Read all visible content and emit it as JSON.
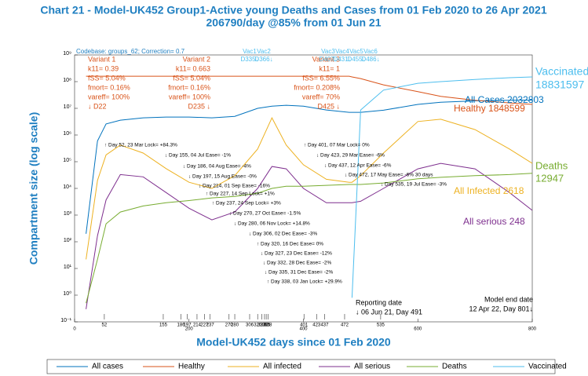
{
  "chart_data": {
    "type": "line",
    "title": "Chart 21 - Model-UK452 Group1-Active young Deaths and Cases from 01 Feb 2020 to 26 Apr 2021",
    "subtitle": "206790/day @85% from 01 Jun 21",
    "x_label": "Model-UK452 days since 01 Feb 2020",
    "y_label": "Compartment size (log scale)",
    "log_y": true,
    "xlim": [
      0,
      800
    ],
    "xticks": [
      0,
      200,
      400,
      600,
      800
    ],
    "ylim": [
      0.1,
      1000000000
    ],
    "yticks": [
      {
        "value": 0.1,
        "label": "10⁻¹"
      },
      {
        "value": 1,
        "label": "10⁰"
      },
      {
        "value": 10,
        "label": "10¹"
      },
      {
        "value": 100,
        "label": "10²"
      },
      {
        "value": 1000,
        "label": "10³"
      },
      {
        "value": 10000,
        "label": "10⁴"
      },
      {
        "value": 100000,
        "label": "10⁵"
      },
      {
        "value": 1000000,
        "label": "10⁶"
      },
      {
        "value": 10000000,
        "label": "10⁷"
      },
      {
        "value": 100000000,
        "label": "10⁸"
      },
      {
        "value": 1000000000,
        "label": "10⁹"
      }
    ],
    "x": [
      20,
      40,
      55,
      80,
      120,
      160,
      200,
      240,
      280,
      320,
      345,
      370,
      400,
      440,
      480,
      485,
      500,
      540,
      600,
      640,
      700,
      760,
      800
    ],
    "series": [
      {
        "name": "All cases",
        "color": "#0072bd",
        "values": [
          200,
          600000,
          2600000,
          3600000,
          4400000,
          4700000,
          4700000,
          4400000,
          5000000,
          10000000,
          12000000,
          13000000,
          12000000,
          8700000,
          7100000,
          7100000,
          7100000,
          8500000,
          14000000,
          17000000,
          19000000,
          20000000,
          20300000
        ]
      },
      {
        "name": "Healthy",
        "color": "#d95319",
        "values": [
          160000000,
          160000000,
          160000000,
          160000000,
          160000000,
          160000000,
          160000000,
          160000000,
          160000000,
          160000000,
          160000000,
          160000000,
          160000000,
          160000000,
          160000000,
          150000000,
          130000000,
          76000000,
          42000000,
          28000000,
          20000000,
          16000000,
          14000000
        ]
      },
      {
        "name": "All infected",
        "color": "#edb120",
        "values": [
          22,
          20000,
          180000,
          420000,
          210000,
          55000,
          17000,
          10000,
          30000,
          300000,
          4400000,
          420000,
          77000,
          22000,
          17000,
          17000,
          30000,
          210000,
          3200000,
          3900000,
          1600000,
          300000,
          87000
        ]
      },
      {
        "name": "All serious",
        "color": "#7e2f8e",
        "values": [
          0.3,
          170,
          3700,
          33000,
          27000,
          7000,
          1800,
          660,
          1300,
          10000,
          66000,
          54000,
          10000,
          2900,
          2900,
          2900,
          3300,
          10000,
          54000,
          87000,
          54000,
          7000,
          1500
        ]
      },
      {
        "name": "Deaths",
        "color": "#77ac30",
        "values": [
          0.5,
          22,
          470,
          1300,
          2200,
          2900,
          3500,
          4400,
          5000,
          6600,
          10000,
          12000,
          12000,
          13000,
          14000,
          14000,
          14000,
          16000,
          23000,
          26000,
          30000,
          33000,
          37000
        ]
      },
      {
        "name": "Vaccinated",
        "color": "#4dbeee",
        "values": [
          null,
          null,
          null,
          null,
          null,
          null,
          null,
          null,
          null,
          null,
          null,
          null,
          null,
          null,
          null,
          0.8,
          8700000,
          48000000,
          87000000,
          100000000,
          120000000,
          140000000,
          150000000
        ]
      }
    ],
    "codebase": "Codebase: groups_62; Correction= 0.7",
    "variants": [
      [
        "Variant 1",
        "k11= 0.39",
        "fSS= 5.04%",
        "fmort= 0.16%",
        "vareff= 100%",
        "↓ D22"
      ],
      [
        "Variant 2",
        "k11= 0.663",
        "fSS= 5.04%",
        "fmort= 0.16%",
        "vareff= 100%",
        "D235 ↓"
      ],
      [
        "Variant 3",
        "k11= 1",
        "fSS= 6.55%",
        "fmort= 0.208%",
        "vareff= 70%",
        "D425 ↓"
      ]
    ],
    "vaccines": [
      {
        "name": "Vac1",
        "day": "D335↓"
      },
      {
        "name": "Vac2",
        "day": "D366↓"
      },
      {
        "name": "Vac3",
        "day": "D407↓"
      },
      {
        "name": "Vac4",
        "day": "D431↓"
      },
      {
        "name": "Vac5",
        "day": "D455↓"
      },
      {
        "name": "Vac6",
        "day": "D486↓"
      }
    ],
    "events": [
      "↑ Day 52, 23 Mar Lock= +84.3%",
      "↓ Day 155, 04 Jul Ease= -1%",
      "↓ Day 186, 04 Aug Ease= -4%",
      "↓ Day 197, 15 Aug Ease= -0%",
      "↓ Day 214, 01 Sep Ease= -16%",
      "↑ Day 227, 14 Sep Lock= +1%",
      "↑ Day 237, 24 Sep Lock= +3%",
      "↓ Day 270, 27 Oct Ease= -1.5%",
      "↓ Day 280, 06 Nov Lock= +14.8%",
      "↓ Day 306, 02 Dec Ease= -3%",
      "↑ Day 320, 16 Dec Ease= 0%",
      "↓ Day 327, 23 Dec Ease= -12%",
      "↓ Day 332, 28 Dec Ease= -2%",
      "↓ Day 335, 31 Dec Ease= -2%",
      "↑ Day 338, 03 Jan Lock= +29.9%",
      "↑ Day 401, 07 Mar Lock= 0%",
      "↓ Day 423, 29 Mar Ease= -6%",
      "↓ Day 437, 12 Apr Ease= -6%",
      "↓ Day 472, 17 May Ease= -6% 30 days",
      "↓ Day 535, 19 Jul Ease= -3%"
    ],
    "event_days": [
      52,
      155,
      186,
      197,
      214,
      227,
      237,
      270,
      280,
      306,
      320,
      327,
      332,
      335,
      338,
      401,
      423,
      437,
      472,
      535
    ],
    "reporting_date": [
      "Reporting date",
      "↓ 06 Jun 21, Day 491"
    ],
    "model_end_date": [
      "Model end date",
      "12 Apr 22, Day 801↓"
    ],
    "end_labels": [
      "All Cases 2032803",
      "Healthy 1848599",
      "All Infected 2618",
      "All serious 248",
      "Deaths",
      "12947",
      "Vaccinated",
      "18831597"
    ]
  }
}
